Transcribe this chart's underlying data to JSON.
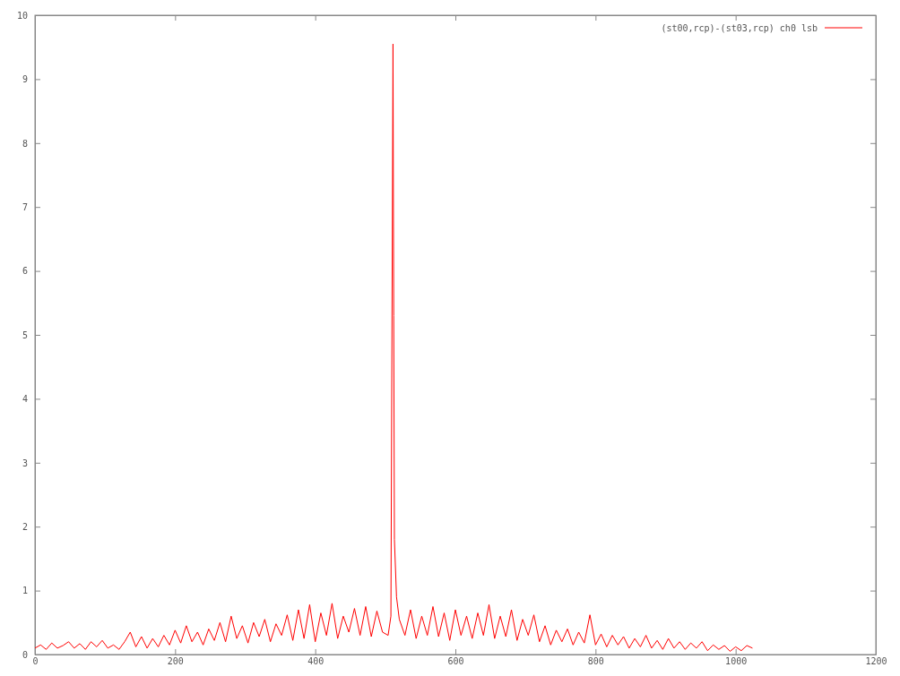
{
  "chart_data": {
    "type": "line",
    "xlim": [
      0,
      1200
    ],
    "ylim": [
      0,
      10
    ],
    "xticks": [
      0,
      200,
      400,
      600,
      800,
      1000,
      1200
    ],
    "yticks": [
      0,
      1,
      2,
      3,
      4,
      5,
      6,
      7,
      8,
      9,
      10
    ],
    "grid": false,
    "legend": "top right",
    "line_style": "solid",
    "marker": "none",
    "series": [
      {
        "name": "(st00,rcp)-(st03,rcp) ch0 lsb",
        "color": "#ff0000",
        "x": [
          0,
          8,
          16,
          24,
          32,
          40,
          48,
          56,
          64,
          72,
          80,
          88,
          96,
          104,
          112,
          120,
          128,
          136,
          144,
          152,
          160,
          168,
          176,
          184,
          192,
          200,
          208,
          216,
          224,
          232,
          240,
          248,
          256,
          264,
          272,
          280,
          288,
          296,
          304,
          312,
          320,
          328,
          336,
          344,
          352,
          360,
          368,
          376,
          384,
          392,
          400,
          408,
          416,
          424,
          432,
          440,
          448,
          456,
          464,
          472,
          480,
          488,
          496,
          504,
          508,
          511,
          512,
          513,
          516,
          520,
          528,
          536,
          544,
          552,
          560,
          568,
          576,
          584,
          592,
          600,
          608,
          616,
          624,
          632,
          640,
          648,
          656,
          664,
          672,
          680,
          688,
          696,
          704,
          712,
          720,
          728,
          736,
          744,
          752,
          760,
          768,
          776,
          784,
          792,
          800,
          808,
          816,
          824,
          832,
          840,
          848,
          856,
          864,
          872,
          880,
          888,
          896,
          904,
          912,
          920,
          928,
          936,
          944,
          952,
          960,
          968,
          976,
          984,
          992,
          1000,
          1008,
          1016,
          1024
        ],
        "values": [
          0.1,
          0.15,
          0.08,
          0.18,
          0.1,
          0.14,
          0.2,
          0.1,
          0.17,
          0.08,
          0.2,
          0.12,
          0.22,
          0.1,
          0.15,
          0.08,
          0.2,
          0.35,
          0.12,
          0.28,
          0.1,
          0.25,
          0.12,
          0.3,
          0.15,
          0.38,
          0.18,
          0.45,
          0.2,
          0.35,
          0.15,
          0.4,
          0.22,
          0.5,
          0.2,
          0.6,
          0.25,
          0.45,
          0.18,
          0.5,
          0.28,
          0.55,
          0.2,
          0.48,
          0.3,
          0.62,
          0.22,
          0.7,
          0.25,
          0.78,
          0.2,
          0.65,
          0.3,
          0.8,
          0.25,
          0.6,
          0.35,
          0.72,
          0.3,
          0.75,
          0.28,
          0.68,
          0.35,
          0.3,
          0.6,
          9.55,
          5.3,
          1.8,
          0.9,
          0.55,
          0.3,
          0.7,
          0.25,
          0.6,
          0.3,
          0.75,
          0.28,
          0.65,
          0.22,
          0.7,
          0.3,
          0.6,
          0.25,
          0.65,
          0.3,
          0.78,
          0.25,
          0.6,
          0.28,
          0.7,
          0.22,
          0.55,
          0.3,
          0.62,
          0.2,
          0.45,
          0.15,
          0.38,
          0.2,
          0.4,
          0.15,
          0.35,
          0.18,
          0.62,
          0.15,
          0.32,
          0.12,
          0.3,
          0.15,
          0.28,
          0.1,
          0.25,
          0.12,
          0.3,
          0.1,
          0.22,
          0.08,
          0.25,
          0.1,
          0.2,
          0.08,
          0.18,
          0.1,
          0.2,
          0.06,
          0.15,
          0.08,
          0.14,
          0.05,
          0.12,
          0.06,
          0.14,
          0.1
        ]
      }
    ]
  }
}
